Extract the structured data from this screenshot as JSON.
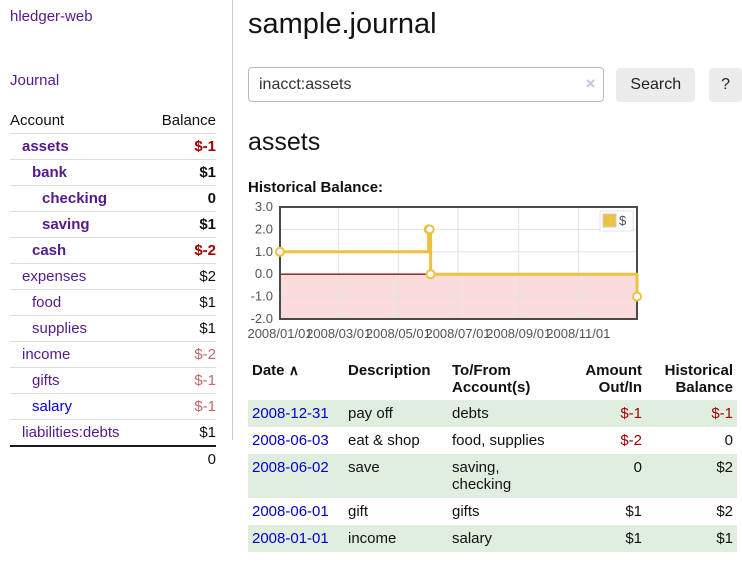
{
  "colors": {
    "link_purple": "#551a8b",
    "link_blue": "#0000ee",
    "date_link_blue": "#0000cc",
    "negative_strong": "#a40000",
    "negative_muted": "#c0696b",
    "row_stripe_green": "#e0eee0",
    "series_gold": "#edc240"
  },
  "brand": "hledger-web",
  "nav": {
    "journal": "Journal"
  },
  "sidebar": {
    "col_account": "Account",
    "col_balance": "Balance",
    "rows": [
      {
        "account": "assets",
        "balance": "$-1"
      },
      {
        "account": "bank",
        "balance": "$1"
      },
      {
        "account": "checking",
        "balance": "0"
      },
      {
        "account": "saving",
        "balance": "$1"
      },
      {
        "account": "cash",
        "balance": "$-2"
      },
      {
        "account": "expenses",
        "balance": "$2"
      },
      {
        "account": "food",
        "balance": "$1"
      },
      {
        "account": "supplies",
        "balance": "$1"
      },
      {
        "account": "income",
        "balance": "$-2"
      },
      {
        "account": "gifts",
        "balance": "$-1"
      },
      {
        "account": "salary",
        "balance": "$-1"
      },
      {
        "account": "liabilities:debts",
        "balance": "$1"
      }
    ],
    "total": "0"
  },
  "header": {
    "title": "sample.journal"
  },
  "search": {
    "value": "inacct:assets",
    "clear_icon": "×",
    "search_button": "Search",
    "help_button": "?"
  },
  "account_page": {
    "heading": "assets",
    "chart_title": "Historical Balance:"
  },
  "chart_data": {
    "type": "line",
    "step": true,
    "title": "Historical Balance:",
    "series": [
      {
        "name": "$",
        "color": "#edc240",
        "points": [
          [
            "2008-01-01",
            1.0
          ],
          [
            "2008-06-01",
            2.0
          ],
          [
            "2008-06-02",
            2.0
          ],
          [
            "2008-06-03",
            0.0
          ],
          [
            "2008-12-31",
            -1.0
          ]
        ]
      }
    ],
    "xlim": [
      "2008-01-01",
      "2008-12-31"
    ],
    "ylim": [
      -2.0,
      3.0
    ],
    "yticks": [
      3.0,
      2.0,
      1.0,
      0.0,
      -1.0,
      -2.0
    ],
    "ytick_labels": [
      "3.0",
      "2.0",
      "1.0",
      "0.0",
      "-1.0",
      "-2.0"
    ],
    "xticks": [
      "2008-01-01",
      "2008-03-01",
      "2008-05-01",
      "2008-07-01",
      "2008-09-01",
      "2008-11-01"
    ],
    "xtick_labels": [
      "2008/01/01",
      "2008/03/01",
      "2008/05/01",
      "2008/07/01",
      "2008/09/01",
      "2008/11/01"
    ],
    "legend": {
      "label": "$",
      "position": "top-right"
    },
    "grid": true,
    "grid_color": "#e2e2e2",
    "border_color": "#4a4a4a",
    "negative_region_fill": "#fbdcdc",
    "zero_line_color": "#961212",
    "tick_label_color": "#545454"
  },
  "register": {
    "headers": {
      "date": "Date",
      "sort_indicator": "∧",
      "description": "Description",
      "tofrom": "To/From Account(s)",
      "amount": "Amount Out/In",
      "balance": "Historical Balance"
    },
    "rows": [
      {
        "date": "2008-12-31",
        "description": "pay off",
        "accounts": "debts",
        "amount": "$-1",
        "balance": "$-1"
      },
      {
        "date": "2008-06-03",
        "description": "eat & shop",
        "accounts": "food, supplies",
        "amount": "$-2",
        "balance": "0"
      },
      {
        "date": "2008-06-02",
        "description": "save",
        "accounts": "saving, checking",
        "amount": "0",
        "balance": "$2"
      },
      {
        "date": "2008-06-01",
        "description": "gift",
        "accounts": "gifts",
        "amount": "$1",
        "balance": "$2"
      },
      {
        "date": "2008-01-01",
        "description": "income",
        "accounts": "salary",
        "amount": "$1",
        "balance": "$1"
      }
    ]
  }
}
